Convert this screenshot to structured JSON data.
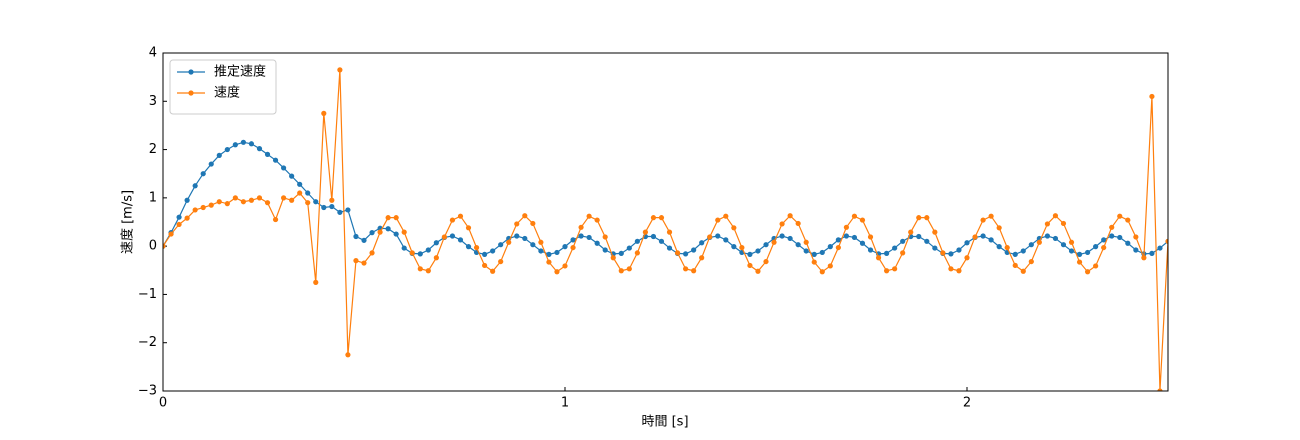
{
  "chart_data": {
    "type": "line",
    "xlabel": "時間 [s]",
    "ylabel": "速度 [m/s]",
    "x": [
      0,
      0.02,
      0.04,
      0.06,
      0.08,
      0.1,
      0.12,
      0.14,
      0.16,
      0.18,
      0.2,
      0.22,
      0.24,
      0.26,
      0.28,
      0.3,
      0.32,
      0.34,
      0.36,
      0.38,
      0.4,
      0.42,
      0.44,
      0.46,
      0.48,
      0.5,
      0.52,
      0.54,
      0.56,
      0.58,
      0.6,
      0.62,
      0.64,
      0.66,
      0.68,
      0.7,
      0.72,
      0.74,
      0.76,
      0.78,
      0.8,
      0.82,
      0.84,
      0.86,
      0.88,
      0.9,
      0.92,
      0.94,
      0.96,
      0.98,
      1,
      1.02,
      1.04,
      1.06,
      1.08,
      1.1,
      1.12,
      1.14,
      1.16,
      1.18,
      1.2,
      1.22,
      1.24,
      1.26,
      1.28,
      1.3,
      1.32,
      1.34,
      1.36,
      1.38,
      1.4,
      1.42,
      1.44,
      1.46,
      1.48,
      1.5,
      1.52,
      1.54,
      1.56,
      1.58,
      1.6,
      1.62,
      1.64,
      1.66,
      1.68,
      1.7,
      1.72,
      1.74,
      1.76,
      1.78,
      1.8,
      1.82,
      1.84,
      1.86,
      1.88,
      1.9,
      1.92,
      1.94,
      1.96,
      1.98,
      2,
      2.02,
      2.04,
      2.06,
      2.08,
      2.1,
      2.12,
      2.14,
      2.16,
      2.18,
      2.2,
      2.22,
      2.24,
      2.26,
      2.28,
      2.3,
      2.32,
      2.34,
      2.36,
      2.38,
      2.4,
      2.42,
      2.44,
      2.46,
      2.48,
      2.5
    ],
    "series": [
      {
        "name": "推定速度",
        "color": "#1f77b4",
        "values": [
          0,
          0.28,
          0.6,
          0.95,
          1.25,
          1.5,
          1.7,
          1.88,
          2.0,
          2.1,
          2.15,
          2.12,
          2.02,
          1.9,
          1.78,
          1.62,
          1.45,
          1.28,
          1.1,
          0.92,
          0.8,
          0.82,
          0.7,
          0.75,
          0.2,
          0.12,
          0.28,
          0.37,
          0.36,
          0.25,
          -0.04,
          -0.15,
          -0.16,
          -0.08,
          0.07,
          0.18,
          0.21,
          0.13,
          -0.01,
          -0.13,
          -0.17,
          -0.1,
          0.03,
          0.16,
          0.21,
          0.16,
          0.03,
          -0.1,
          -0.17,
          -0.13,
          -0.01,
          0.13,
          0.21,
          0.18,
          0.06,
          -0.08,
          -0.16,
          -0.15,
          -0.04,
          0.1,
          0.2,
          0.2,
          0.1,
          -0.04,
          -0.15,
          -0.16,
          -0.08,
          0.07,
          0.18,
          0.21,
          0.13,
          -0.01,
          -0.13,
          -0.17,
          -0.1,
          0.03,
          0.16,
          0.21,
          0.16,
          0.03,
          -0.1,
          -0.17,
          -0.13,
          -0.01,
          0.13,
          0.21,
          0.18,
          0.06,
          -0.08,
          -0.16,
          -0.15,
          -0.04,
          0.1,
          0.2,
          0.2,
          0.1,
          -0.04,
          -0.15,
          -0.16,
          -0.08,
          0.07,
          0.18,
          0.21,
          0.13,
          -0.01,
          -0.13,
          -0.17,
          -0.1,
          0.03,
          0.16,
          0.21,
          0.16,
          0.03,
          -0.1,
          -0.17,
          -0.13,
          -0.01,
          0.13,
          0.21,
          0.18,
          0.06,
          -0.08,
          -0.16,
          -0.15,
          -0.04,
          0.1
        ]
      },
      {
        "name": "速度",
        "color": "#ff7f0e",
        "values": [
          0,
          0.25,
          0.45,
          0.58,
          0.75,
          0.8,
          0.85,
          0.92,
          0.88,
          1.0,
          0.92,
          0.95,
          1.0,
          0.9,
          0.55,
          1.0,
          0.95,
          1.1,
          0.9,
          -0.75,
          2.75,
          0.95,
          3.65,
          -2.25,
          -0.3,
          -0.35,
          -0.14,
          0.29,
          0.59,
          0.59,
          0.29,
          -0.14,
          -0.47,
          -0.51,
          -0.24,
          0.19,
          0.54,
          0.62,
          0.38,
          -0.03,
          -0.4,
          -0.52,
          -0.32,
          0.08,
          0.46,
          0.63,
          0.47,
          0.08,
          -0.33,
          -0.53,
          -0.41,
          -0.03,
          0.39,
          0.62,
          0.54,
          0.19,
          -0.24,
          -0.51,
          -0.47,
          -0.14,
          0.29,
          0.59,
          0.59,
          0.29,
          -0.14,
          -0.47,
          -0.51,
          -0.24,
          0.19,
          0.54,
          0.62,
          0.38,
          -0.03,
          -0.4,
          -0.52,
          -0.32,
          0.08,
          0.46,
          0.63,
          0.47,
          0.08,
          -0.33,
          -0.53,
          -0.41,
          -0.03,
          0.39,
          0.62,
          0.54,
          0.19,
          -0.24,
          -0.51,
          -0.47,
          -0.14,
          0.29,
          0.59,
          0.59,
          0.29,
          -0.14,
          -0.47,
          -0.51,
          -0.24,
          0.19,
          0.54,
          0.62,
          0.38,
          -0.03,
          -0.4,
          -0.52,
          -0.32,
          0.08,
          0.46,
          0.63,
          0.47,
          0.08,
          -0.33,
          -0.53,
          -0.41,
          -0.03,
          0.39,
          0.62,
          0.54,
          0.19,
          -0.24,
          3.1,
          -3.0,
          0.1
        ]
      }
    ],
    "xlim": [
      0,
      2.5
    ],
    "xticks": [
      0,
      1,
      2
    ],
    "ylim": [
      -3,
      4
    ],
    "yticks": [
      {
        "value": -3,
        "label": "−3"
      },
      {
        "value": -2,
        "label": "−2"
      },
      {
        "value": -1,
        "label": "−1"
      },
      0,
      1,
      2,
      3,
      4
    ],
    "grid": false,
    "legend": "upper left"
  }
}
